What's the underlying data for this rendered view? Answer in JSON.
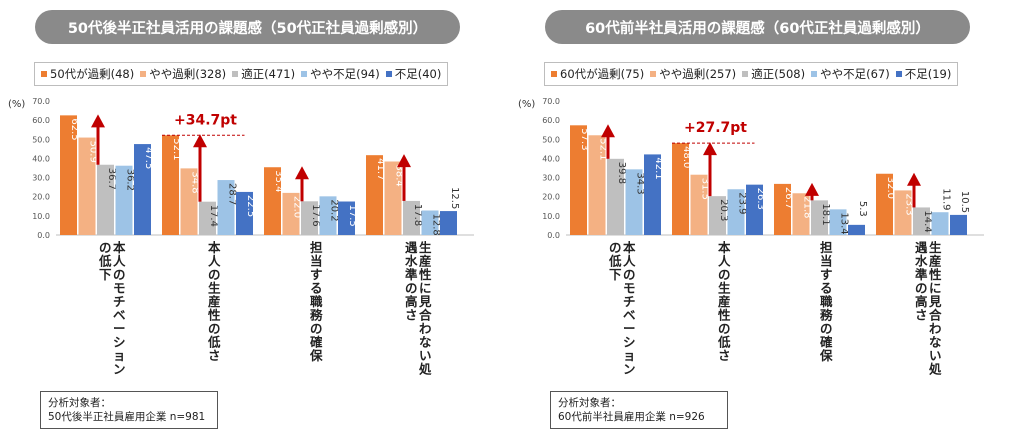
{
  "chart_data": [
    {
      "type": "bar",
      "title": "50代後半正社員活用の課題感（50代正社員過剰感別）",
      "ylabel": "(%)",
      "ylim": [
        0,
        70
      ],
      "yticks": [
        "0.0",
        "10.0",
        "20.0",
        "30.0",
        "40.0",
        "50.0",
        "60.0",
        "70.0"
      ],
      "grid": false,
      "legend_position": "top",
      "categories": [
        "本人のモチベーションの低下",
        "本人の生産性の低さ",
        "担当する職務の確保",
        "生産性に見合わない処遇水準の高さ"
      ],
      "series": [
        {
          "name": "50代が過剰(48)",
          "color": "#ed7d31",
          "values": [
            62.5,
            52.1,
            35.4,
            41.7
          ],
          "labels": [
            "62.5",
            "52.1",
            "35.4",
            "41.7"
          ]
        },
        {
          "name": "やや過剰(328)",
          "color": "#f4b183",
          "values": [
            50.9,
            34.8,
            22.0,
            38.4
          ],
          "labels": [
            "50.9",
            "34.8",
            "22.0",
            "38.4"
          ]
        },
        {
          "name": "適正(471)",
          "color": "#bfbfbf",
          "values": [
            36.7,
            17.4,
            17.6,
            17.8
          ],
          "labels": [
            "36.7",
            "17.4",
            "17.6",
            "17.8"
          ]
        },
        {
          "name": "やや不足(94)",
          "color": "#9dc3e6",
          "values": [
            36.2,
            28.7,
            20.2,
            12.8
          ],
          "labels": [
            "36.2",
            "28.7",
            "20.2",
            "12.8"
          ]
        },
        {
          "name": "不足(40)",
          "color": "#4472c4",
          "values": [
            47.5,
            22.5,
            17.5,
            12.5
          ],
          "labels": [
            "47.5",
            "22.5",
            "17.5",
            "12.5"
          ]
        }
      ],
      "annotation": {
        "text": "+34.7pt",
        "category_index": 1
      }
    },
    {
      "type": "bar",
      "title": "60代前半社員活用の課題感（60代正社員過剰感別）",
      "ylabel": "(%)",
      "ylim": [
        0,
        70
      ],
      "yticks": [
        "0.0",
        "10.0",
        "20.0",
        "30.0",
        "40.0",
        "50.0",
        "60.0",
        "70.0"
      ],
      "grid": false,
      "legend_position": "top",
      "categories": [
        "本人のモチベーションの低下",
        "本人の生産性の低さ",
        "担当する職務の確保",
        "生産性に見合わない処遇水準の高さ"
      ],
      "series": [
        {
          "name": "60代が過剰(75)",
          "color": "#ed7d31",
          "values": [
            57.3,
            48.0,
            26.7,
            32.0
          ],
          "labels": [
            "57.3",
            "48.0",
            "26.7",
            "32.0"
          ]
        },
        {
          "name": "やや過剰(257)",
          "color": "#f4b183",
          "values": [
            52.1,
            31.5,
            21.8,
            23.3
          ],
          "labels": [
            "52.1",
            "31.5",
            "21.8",
            "23.3"
          ]
        },
        {
          "name": "適正(508)",
          "color": "#bfbfbf",
          "values": [
            39.8,
            20.3,
            18.1,
            14.4
          ],
          "labels": [
            "39.8",
            "20.3",
            "18.1",
            "14.4"
          ]
        },
        {
          "name": "やや不足(67)",
          "color": "#9dc3e6",
          "values": [
            34.3,
            23.9,
            13.4,
            11.9
          ],
          "labels": [
            "34.3",
            "23.9",
            "13.4",
            "11.9"
          ]
        },
        {
          "name": "不足(19)",
          "color": "#4472c4",
          "values": [
            42.1,
            26.3,
            5.3,
            10.5
          ],
          "labels": [
            "42.1",
            "26.3",
            "5.3",
            "10.5"
          ]
        }
      ],
      "annotation": {
        "text": "+27.7pt",
        "category_index": 1
      }
    }
  ],
  "notes": [
    {
      "line1": "分析対象者：",
      "line2": "50代後半正社員雇用企業 n=981"
    },
    {
      "line1": "分析対象者：",
      "line2": "60代前半社員雇用企業 n=926"
    }
  ],
  "colors": {
    "arrow": "#c00000",
    "dash": "#c00000",
    "pill": "#8a8a8a"
  }
}
